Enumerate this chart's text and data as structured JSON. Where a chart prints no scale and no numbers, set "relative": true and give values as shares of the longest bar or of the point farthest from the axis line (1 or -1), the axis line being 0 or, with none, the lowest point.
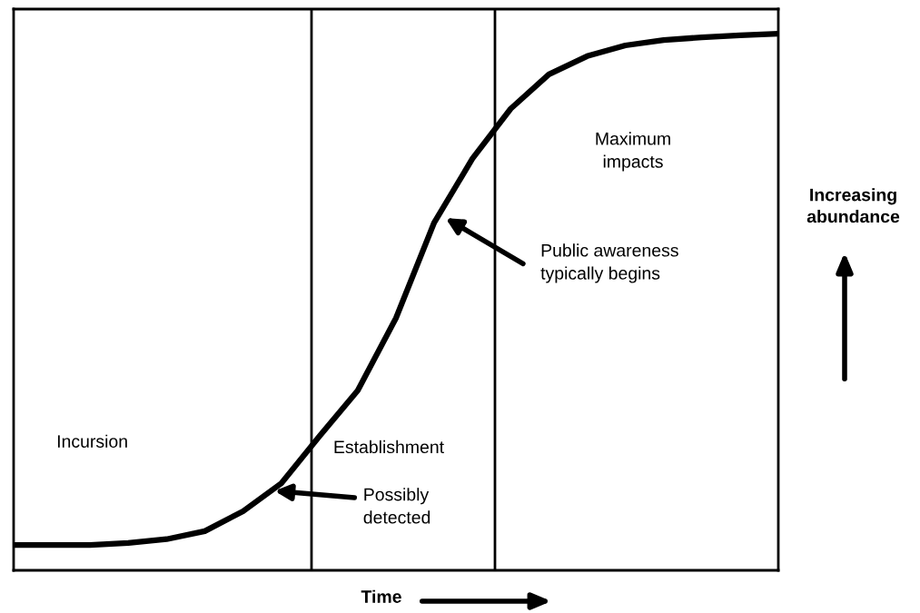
{
  "chart_data": {
    "type": "line",
    "relative": true,
    "xlabel": "Time",
    "ylabel": "Increasing abundance",
    "categories": [
      null,
      null,
      null,
      null,
      null,
      null,
      null,
      null,
      null,
      null,
      null,
      null,
      null,
      null,
      null,
      null,
      null,
      null,
      null,
      null,
      null
    ],
    "series": [
      {
        "color": "#000000",
        "values": [
          0.047,
          0.047,
          0.047,
          0.051,
          0.058,
          0.073,
          0.11,
          0.162,
          0.25,
          0.335,
          0.47,
          0.648,
          0.767,
          0.86,
          0.924,
          0.958,
          0.978,
          0.988,
          0.993,
          0.997,
          1.0
        ]
      }
    ],
    "annotations": [
      "Incursion",
      "Establishment",
      "Maximum impacts",
      "Public awareness typically begins",
      "Possibly detected"
    ],
    "grid": false,
    "marker": "none",
    "line_style": "solid"
  }
}
